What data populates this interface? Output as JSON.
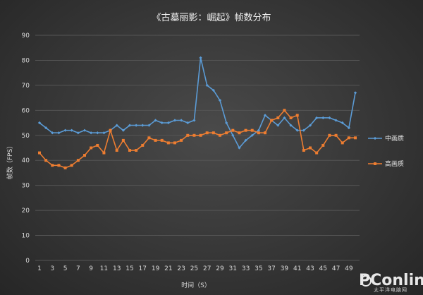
{
  "chart_data": {
    "type": "line",
    "title": "《古墓丽影：崛起》帧数分布",
    "xlabel": "时间（S）",
    "ylabel": "帧数（FPS）",
    "ylim": [
      0,
      90
    ],
    "yticks": [
      0,
      10,
      20,
      30,
      40,
      50,
      60,
      70,
      80,
      90
    ],
    "x": [
      1,
      2,
      3,
      4,
      5,
      6,
      7,
      8,
      9,
      10,
      11,
      12,
      13,
      14,
      15,
      16,
      17,
      18,
      19,
      20,
      21,
      22,
      23,
      24,
      25,
      26,
      27,
      28,
      29,
      30,
      31,
      32,
      33,
      34,
      35,
      36,
      37,
      38,
      39,
      40,
      41,
      42,
      43,
      44,
      45,
      46,
      47,
      48,
      49,
      50
    ],
    "xtick_labels": [
      "1",
      "3",
      "5",
      "7",
      "9",
      "11",
      "13",
      "15",
      "17",
      "19",
      "21",
      "23",
      "25",
      "27",
      "29",
      "31",
      "33",
      "35",
      "37",
      "39",
      "41",
      "43",
      "45",
      "47",
      "49"
    ],
    "grid": true,
    "legend_position": "right",
    "series": [
      {
        "name": "中画质",
        "color": "#5b9bd5",
        "values": [
          55,
          53,
          51,
          51,
          52,
          52,
          51,
          52,
          51,
          51,
          51,
          52,
          54,
          52,
          54,
          54,
          54,
          54,
          56,
          55,
          55,
          56,
          56,
          55,
          56,
          81,
          70,
          68,
          64,
          55,
          50,
          45,
          48,
          50,
          52,
          58,
          56,
          54,
          57,
          54,
          52,
          52,
          54,
          57,
          57,
          57,
          56,
          55,
          53,
          67
        ]
      },
      {
        "name": "高画质",
        "color": "#ed7d31",
        "values": [
          43,
          40,
          38,
          38,
          37,
          38,
          40,
          42,
          45,
          46,
          43,
          52,
          44,
          48,
          44,
          44,
          46,
          49,
          48,
          48,
          47,
          47,
          48,
          50,
          50,
          50,
          51,
          51,
          50,
          51,
          52,
          51,
          52,
          52,
          51,
          51,
          56,
          57,
          60,
          57,
          58,
          44,
          45,
          43,
          46,
          50,
          50,
          47,
          49,
          49
        ]
      }
    ]
  },
  "watermark": {
    "brand": "PConline",
    "sub": "太平洋电脑网"
  }
}
